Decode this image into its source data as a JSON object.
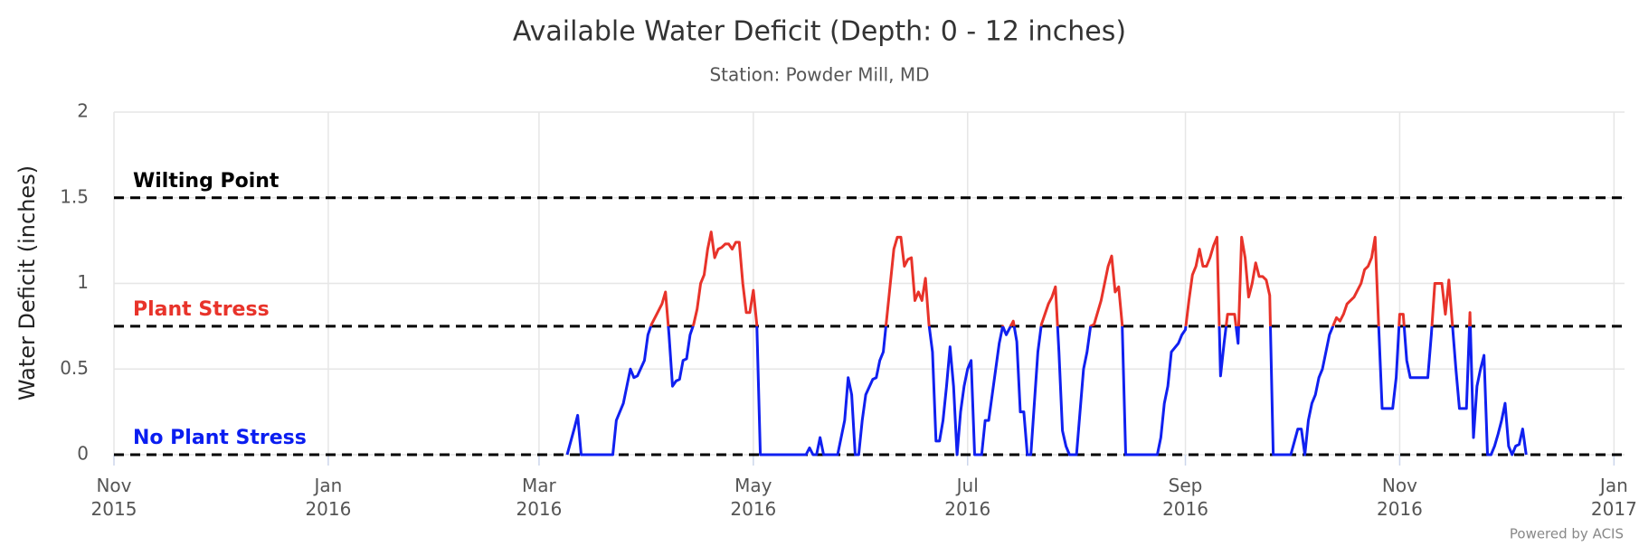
{
  "chart_data": {
    "type": "line",
    "title": "Available Water Deficit (Depth: 0 - 12 inches)",
    "subtitle": "Station: Powder Mill, MD",
    "y_label": "Water Deficit (inches)",
    "credit": "Powered by ACIS",
    "grid": true,
    "xlim": [
      "2015-11-01",
      "2017-01-04"
    ],
    "xticks": [
      {
        "value": "2015-11-01",
        "label": "Nov 2015"
      },
      {
        "value": "2016-01-01",
        "label": "Jan 2016"
      },
      {
        "value": "2016-03-01",
        "label": "Mar 2016"
      },
      {
        "value": "2016-05-01",
        "label": "May 2016"
      },
      {
        "value": "2016-07-01",
        "label": "Jul 2016"
      },
      {
        "value": "2016-09-01",
        "label": "Sep 2016"
      },
      {
        "value": "2016-11-01",
        "label": "Nov 2016"
      },
      {
        "value": "2017-01-01",
        "label": "Jan 2017"
      }
    ],
    "ylim": [
      0,
      2
    ],
    "yticks": [
      0,
      0.5,
      1,
      1.5,
      2
    ],
    "thresholds": [
      {
        "label": "Wilting Point",
        "value": 1.5,
        "color": "#000000"
      },
      {
        "label": "Plant Stress",
        "value": 0.75,
        "color": "#e8332a"
      },
      {
        "label": "No Plant Stress",
        "value": 0,
        "color": "#0a1df0"
      }
    ],
    "x": [
      "2016-03-09",
      "2016-03-11",
      "2016-03-12",
      "2016-03-13",
      "2016-03-22",
      "2016-03-23",
      "2016-03-25",
      "2016-03-27",
      "2016-03-28",
      "2016-03-29",
      "2016-03-31",
      "2016-04-01",
      "2016-04-02",
      "2016-04-03",
      "2016-04-05",
      "2016-04-06",
      "2016-04-07",
      "2016-04-08",
      "2016-04-09",
      "2016-04-10",
      "2016-04-11",
      "2016-04-12",
      "2016-04-13",
      "2016-04-14",
      "2016-04-15",
      "2016-04-16",
      "2016-04-17",
      "2016-04-18",
      "2016-04-19",
      "2016-04-20",
      "2016-04-21",
      "2016-04-22",
      "2016-04-23",
      "2016-04-24",
      "2016-04-25",
      "2016-04-26",
      "2016-04-27",
      "2016-04-28",
      "2016-04-29",
      "2016-04-30",
      "2016-05-01",
      "2016-05-02",
      "2016-05-03",
      "2016-05-16",
      "2016-05-17",
      "2016-05-18",
      "2016-05-19",
      "2016-05-20",
      "2016-05-21",
      "2016-05-25",
      "2016-05-27",
      "2016-05-28",
      "2016-05-29",
      "2016-05-30",
      "2016-05-31",
      "2016-06-01",
      "2016-06-02",
      "2016-06-04",
      "2016-06-05",
      "2016-06-06",
      "2016-06-07",
      "2016-06-08",
      "2016-06-09",
      "2016-06-10",
      "2016-06-11",
      "2016-06-12",
      "2016-06-13",
      "2016-06-14",
      "2016-06-15",
      "2016-06-16",
      "2016-06-17",
      "2016-06-18",
      "2016-06-19",
      "2016-06-20",
      "2016-06-21",
      "2016-06-22",
      "2016-06-23",
      "2016-06-24",
      "2016-06-25",
      "2016-06-26",
      "2016-06-27",
      "2016-06-28",
      "2016-06-29",
      "2016-06-30",
      "2016-07-01",
      "2016-07-02",
      "2016-07-03",
      "2016-07-05",
      "2016-07-06",
      "2016-07-07",
      "2016-07-08",
      "2016-07-09",
      "2016-07-10",
      "2016-07-11",
      "2016-07-12",
      "2016-07-14",
      "2016-07-15",
      "2016-07-16",
      "2016-07-17",
      "2016-07-18",
      "2016-07-19",
      "2016-07-20",
      "2016-07-21",
      "2016-07-22",
      "2016-07-24",
      "2016-07-25",
      "2016-07-26",
      "2016-07-27",
      "2016-07-28",
      "2016-07-29",
      "2016-07-30",
      "2016-08-01",
      "2016-08-02",
      "2016-08-03",
      "2016-08-04",
      "2016-08-05",
      "2016-08-06",
      "2016-08-08",
      "2016-08-09",
      "2016-08-10",
      "2016-08-11",
      "2016-08-12",
      "2016-08-13",
      "2016-08-14",
      "2016-08-15",
      "2016-08-24",
      "2016-08-25",
      "2016-08-26",
      "2016-08-27",
      "2016-08-28",
      "2016-08-30",
      "2016-08-31",
      "2016-09-01",
      "2016-09-02",
      "2016-09-03",
      "2016-09-04",
      "2016-09-05",
      "2016-09-06",
      "2016-09-07",
      "2016-09-08",
      "2016-09-09",
      "2016-09-10",
      "2016-09-11",
      "2016-09-12",
      "2016-09-13",
      "2016-09-14",
      "2016-09-15",
      "2016-09-16",
      "2016-09-17",
      "2016-09-18",
      "2016-09-19",
      "2016-09-20",
      "2016-09-21",
      "2016-09-22",
      "2016-09-23",
      "2016-09-24",
      "2016-09-25",
      "2016-09-26",
      "2016-10-01",
      "2016-10-03",
      "2016-10-04",
      "2016-10-05",
      "2016-10-06",
      "2016-10-07",
      "2016-10-08",
      "2016-10-09",
      "2016-10-10",
      "2016-10-11",
      "2016-10-12",
      "2016-10-13",
      "2016-10-14",
      "2016-10-15",
      "2016-10-16",
      "2016-10-17",
      "2016-10-18",
      "2016-10-19",
      "2016-10-20",
      "2016-10-21",
      "2016-10-22",
      "2016-10-23",
      "2016-10-24",
      "2016-10-25",
      "2016-10-26",
      "2016-10-27",
      "2016-10-30",
      "2016-10-31",
      "2016-11-01",
      "2016-11-02",
      "2016-11-03",
      "2016-11-04",
      "2016-11-09",
      "2016-11-10",
      "2016-11-11",
      "2016-11-13",
      "2016-11-14",
      "2016-11-15",
      "2016-11-16",
      "2016-11-17",
      "2016-11-18",
      "2016-11-20",
      "2016-11-21",
      "2016-11-22",
      "2016-11-23",
      "2016-11-24",
      "2016-11-25",
      "2016-11-26",
      "2016-11-27",
      "2016-11-28",
      "2016-11-29",
      "2016-11-30",
      "2016-12-01",
      "2016-12-02",
      "2016-12-03",
      "2016-12-04",
      "2016-12-05",
      "2016-12-06",
      "2016-12-07"
    ],
    "series": [
      {
        "color": "#1020f0",
        "stress_color": "#e8332a",
        "values": [
          0,
          0.15,
          0.23,
          0,
          0,
          0.2,
          0.3,
          0.5,
          0.45,
          0.46,
          0.55,
          0.7,
          0.76,
          0.8,
          0.88,
          0.95,
          0.7,
          0.4,
          0.43,
          0.44,
          0.55,
          0.56,
          0.7,
          0.76,
          0.85,
          1.0,
          1.05,
          1.2,
          1.3,
          1.15,
          1.2,
          1.21,
          1.23,
          1.23,
          1.2,
          1.24,
          1.24,
          1.0,
          0.83,
          0.83,
          0.96,
          0.76,
          0,
          0,
          0.04,
          0,
          0,
          0.1,
          0,
          0,
          0.2,
          0.45,
          0.35,
          0,
          0,
          0.2,
          0.35,
          0.44,
          0.45,
          0.55,
          0.6,
          0.8,
          1.0,
          1.2,
          1.27,
          1.27,
          1.1,
          1.14,
          1.15,
          0.9,
          0.95,
          0.9,
          1.03,
          0.76,
          0.6,
          0.08,
          0.08,
          0.2,
          0.4,
          0.63,
          0.4,
          0,
          0.25,
          0.4,
          0.5,
          0.55,
          0,
          0,
          0.2,
          0.2,
          0.35,
          0.5,
          0.65,
          0.75,
          0.7,
          0.78,
          0.66,
          0.25,
          0.25,
          0,
          0,
          0.3,
          0.6,
          0.76,
          0.88,
          0.92,
          0.98,
          0.6,
          0.14,
          0.05,
          0,
          0,
          0.25,
          0.5,
          0.6,
          0.75,
          0.76,
          0.9,
          1.0,
          1.1,
          1.16,
          0.95,
          0.98,
          0.76,
          0,
          0,
          0.1,
          0.3,
          0.4,
          0.6,
          0.65,
          0.7,
          0.73,
          0.9,
          1.05,
          1.1,
          1.2,
          1.1,
          1.1,
          1.15,
          1.22,
          1.27,
          0.46,
          0.65,
          0.82,
          0.82,
          0.82,
          0.65,
          1.27,
          1.15,
          0.92,
          1.0,
          1.12,
          1.04,
          1.04,
          1.02,
          0.93,
          0,
          0,
          0.15,
          0.15,
          0,
          0.2,
          0.3,
          0.35,
          0.45,
          0.5,
          0.6,
          0.7,
          0.75,
          0.8,
          0.78,
          0.82,
          0.88,
          0.9,
          0.92,
          0.96,
          1.0,
          1.08,
          1.1,
          1.15,
          1.27,
          0.76,
          0.27,
          0.27,
          0.45,
          0.82,
          0.82,
          0.55,
          0.45,
          0.45,
          0.7,
          1.0,
          1.0,
          0.82,
          1.02,
          0.76,
          0.5,
          0.27,
          0.27,
          0.83,
          0.1,
          0.4,
          0.5,
          0.58,
          0,
          0,
          0.05,
          0.12,
          0.2,
          0.3,
          0.05,
          0,
          0.05,
          0.06,
          0.15,
          0
        ]
      }
    ]
  }
}
